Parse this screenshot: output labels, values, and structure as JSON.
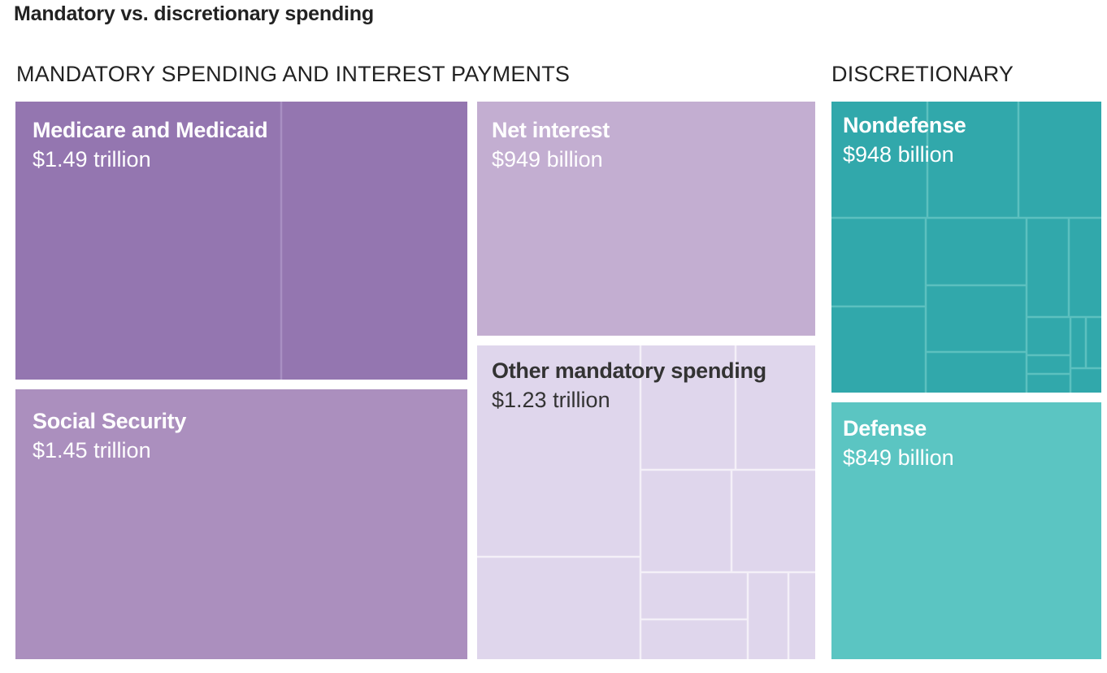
{
  "chart_data": {
    "type": "treemap",
    "title": "Mandatory vs. discretionary spending",
    "groups": [
      {
        "name": "MANDATORY SPENDING AND INTEREST PAYMENTS",
        "categories": [
          {
            "name": "Medicare and Medicaid",
            "value_label": "$1.49 trillion",
            "value": 1.49,
            "color": "#9476b0"
          },
          {
            "name": "Social Security",
            "value_label": "$1.45 trillion",
            "value": 1.45,
            "color": "#ab8fbe"
          },
          {
            "name": "Net interest",
            "value_label": "$949 billion",
            "value": 0.949,
            "color": "#c3aed1"
          },
          {
            "name": "Other mandatory spending",
            "value_label": "$1.23 trillion",
            "value": 1.23,
            "color": "#dfd6ec"
          }
        ]
      },
      {
        "name": "DISCRETIONARY",
        "categories": [
          {
            "name": "Nondefense",
            "value_label": "$948 billion",
            "value": 0.948,
            "color": "#31a8ab"
          },
          {
            "name": "Defense",
            "value_label": "$849 billion",
            "value": 0.849,
            "color": "#5bc5c2"
          }
        ]
      }
    ]
  }
}
